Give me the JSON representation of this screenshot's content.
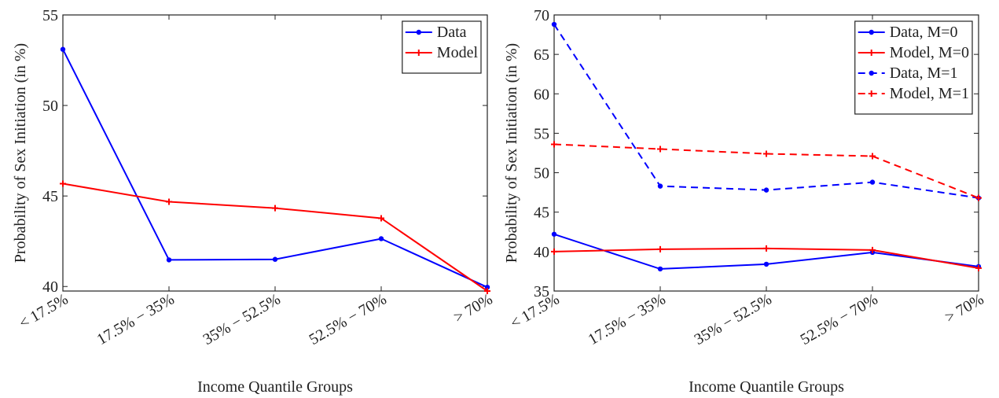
{
  "chart_data": [
    {
      "type": "line",
      "x_label": "Income Quantile Groups",
      "y_label": "Probability of Sex Initiation (in %)",
      "categories": [
        "< 17.5%",
        "17.5% − 35%",
        "35% − 52.5%",
        "52.5% − 70%",
        "> 70%"
      ],
      "ylim": [
        39.75,
        55
      ],
      "yticks": [
        40,
        45,
        50,
        55
      ],
      "legend": "top-right",
      "series": [
        {
          "name": "Data",
          "color": "#0000ff",
          "marker": "dot",
          "dash": false,
          "values": [
            53.1,
            41.47,
            41.5,
            42.64,
            39.96
          ]
        },
        {
          "name": "Model",
          "color": "#ff0000",
          "marker": "plus",
          "dash": false,
          "values": [
            45.68,
            44.68,
            44.33,
            43.77,
            39.75
          ]
        }
      ]
    },
    {
      "type": "line",
      "x_label": "Income Quantile Groups",
      "y_label": "Probability of Sex Initiation (in %)",
      "categories": [
        "< 17.5%",
        "17.5% − 35%",
        "35% − 52.5%",
        "52.5% − 70%",
        "> 70%"
      ],
      "ylim": [
        35,
        70
      ],
      "yticks": [
        35,
        40,
        45,
        50,
        55,
        60,
        65,
        70
      ],
      "legend": "top-right",
      "series": [
        {
          "name": "Data, M=0",
          "color": "#0000ff",
          "marker": "dot",
          "dash": false,
          "values": [
            42.2,
            37.8,
            38.4,
            39.9,
            38.1
          ]
        },
        {
          "name": "Model, M=0",
          "color": "#ff0000",
          "marker": "plus",
          "dash": false,
          "values": [
            40.0,
            40.3,
            40.4,
            40.2,
            37.9
          ]
        },
        {
          "name": "Data, M=1",
          "color": "#0000ff",
          "marker": "dot",
          "dash": true,
          "values": [
            68.8,
            48.3,
            47.8,
            48.8,
            46.8
          ]
        },
        {
          "name": "Model, M=1",
          "color": "#ff0000",
          "marker": "plus",
          "dash": true,
          "values": [
            53.6,
            53.0,
            52.4,
            52.1,
            46.8
          ]
        }
      ]
    }
  ]
}
